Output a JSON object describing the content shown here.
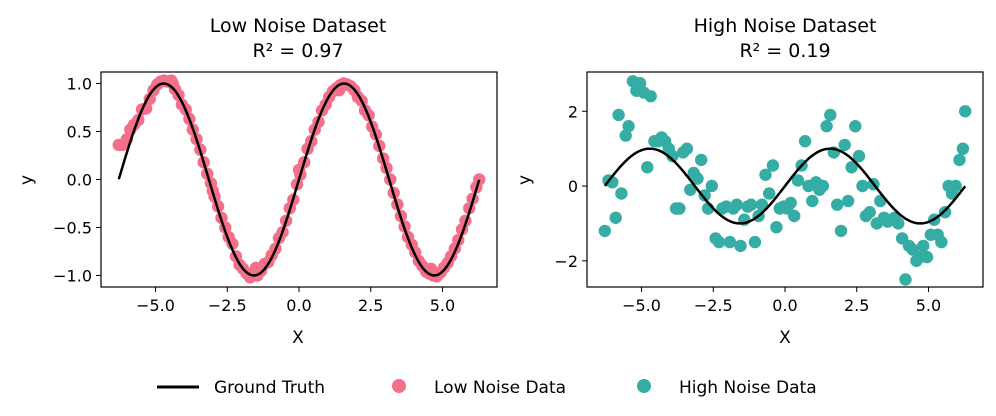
{
  "chart_data": [
    {
      "type": "scatter",
      "title": "Low Noise Dataset",
      "subtitle": "R² = 0.97",
      "xlabel": "X",
      "ylabel": "y",
      "xlim": [
        -6.9,
        6.9
      ],
      "ylim": [
        -1.12,
        1.12
      ],
      "xticks": [
        -5.0,
        -2.5,
        0.0,
        2.5,
        5.0
      ],
      "xtick_labels": [
        "−5.0",
        "−2.5",
        "0.0",
        "2.5",
        "5.0"
      ],
      "yticks": [
        -1.0,
        -0.5,
        0.0,
        0.5,
        1.0
      ],
      "ytick_labels": [
        "−1.0",
        "−0.5",
        "0.0",
        "0.5",
        "1.0"
      ],
      "grid": false,
      "series": [
        {
          "name": "Low Noise Data",
          "kind": "scatter",
          "color": "#f4708a",
          "points": [
            [
              -6.28,
              0.36
            ],
            [
              -6.15,
              0.36
            ],
            [
              -6.0,
              0.42
            ],
            [
              -5.88,
              0.52
            ],
            [
              -5.75,
              0.57
            ],
            [
              -5.6,
              0.62
            ],
            [
              -5.47,
              0.73
            ],
            [
              -5.33,
              0.74
            ],
            [
              -5.2,
              0.84
            ],
            [
              -5.07,
              0.93
            ],
            [
              -4.94,
              0.99
            ],
            [
              -4.82,
              1.02
            ],
            [
              -4.7,
              1.03
            ],
            [
              -4.58,
              1.02
            ],
            [
              -4.45,
              1.03
            ],
            [
              -4.32,
              0.94
            ],
            [
              -4.2,
              0.88
            ],
            [
              -4.08,
              0.78
            ],
            [
              -3.95,
              0.73
            ],
            [
              -3.82,
              0.63
            ],
            [
              -3.7,
              0.52
            ],
            [
              -3.57,
              0.42
            ],
            [
              -3.44,
              0.31
            ],
            [
              -3.32,
              0.18
            ],
            [
              -3.2,
              0.06
            ],
            [
              -3.07,
              -0.04
            ],
            [
              -2.94,
              -0.18
            ],
            [
              -2.82,
              -0.28
            ],
            [
              -2.7,
              -0.4
            ],
            [
              -2.57,
              -0.5
            ],
            [
              -2.45,
              -0.6
            ],
            [
              -2.32,
              -0.67
            ],
            [
              -2.2,
              -0.8
            ],
            [
              -2.07,
              -0.89
            ],
            [
              -1.95,
              -0.93
            ],
            [
              -1.82,
              -0.98
            ],
            [
              -1.7,
              -1.02
            ],
            [
              -1.57,
              -0.98
            ],
            [
              -1.45,
              -1.0
            ],
            [
              -1.32,
              -0.95
            ],
            [
              -1.2,
              -0.88
            ],
            [
              -1.07,
              -0.86
            ],
            [
              -0.95,
              -0.79
            ],
            [
              -0.82,
              -0.72
            ],
            [
              -0.7,
              -0.61
            ],
            [
              -0.57,
              -0.55
            ],
            [
              -0.45,
              -0.43
            ],
            [
              -0.32,
              -0.3
            ],
            [
              -0.2,
              -0.21
            ],
            [
              -0.07,
              -0.05
            ],
            [
              0.05,
              0.05
            ],
            [
              0.18,
              0.18
            ],
            [
              0.3,
              0.32
            ],
            [
              0.43,
              0.4
            ],
            [
              0.55,
              0.52
            ],
            [
              0.68,
              0.6
            ],
            [
              0.8,
              0.72
            ],
            [
              0.93,
              0.78
            ],
            [
              1.05,
              0.86
            ],
            [
              1.18,
              0.92
            ],
            [
              1.3,
              0.95
            ],
            [
              1.43,
              0.98
            ],
            [
              1.55,
              1.0
            ],
            [
              1.68,
              0.99
            ],
            [
              1.8,
              0.97
            ],
            [
              1.93,
              0.93
            ],
            [
              2.05,
              0.86
            ],
            [
              2.18,
              0.82
            ],
            [
              2.3,
              0.72
            ],
            [
              2.43,
              0.67
            ],
            [
              2.55,
              0.55
            ],
            [
              2.68,
              0.47
            ],
            [
              2.8,
              0.35
            ],
            [
              2.93,
              0.22
            ],
            [
              3.05,
              0.12
            ],
            [
              3.18,
              0.0
            ],
            [
              3.3,
              -0.14
            ],
            [
              3.43,
              -0.26
            ],
            [
              3.55,
              -0.38
            ],
            [
              3.68,
              -0.49
            ],
            [
              3.8,
              -0.6
            ],
            [
              3.93,
              -0.68
            ],
            [
              4.05,
              -0.76
            ],
            [
              4.18,
              -0.85
            ],
            [
              4.3,
              -0.9
            ],
            [
              4.43,
              -0.96
            ],
            [
              4.55,
              -0.98
            ],
            [
              4.68,
              -1.0
            ],
            [
              4.8,
              -1.01
            ],
            [
              4.93,
              -0.97
            ],
            [
              5.05,
              -0.92
            ],
            [
              5.18,
              -0.87
            ],
            [
              5.3,
              -0.8
            ],
            [
              5.43,
              -0.72
            ],
            [
              5.55,
              -0.63
            ],
            [
              5.68,
              -0.52
            ],
            [
              5.8,
              -0.43
            ],
            [
              5.93,
              -0.3
            ],
            [
              6.05,
              -0.2
            ],
            [
              6.18,
              -0.08
            ],
            [
              6.28,
              0.0
            ],
            [
              -4.4,
              1.0
            ],
            [
              1.4,
              0.93
            ],
            [
              -1.5,
              -0.92
            ],
            [
              4.6,
              -0.93
            ],
            [
              -3.0,
              -0.12
            ],
            [
              0.0,
              0.1
            ]
          ]
        },
        {
          "name": "Ground Truth",
          "kind": "line",
          "color": "#000000",
          "function": "sin",
          "x_range": [
            -6.28,
            6.28
          ]
        }
      ]
    },
    {
      "type": "scatter",
      "title": "High Noise Dataset",
      "subtitle": "R² = 0.19",
      "xlabel": "X",
      "ylabel": "y",
      "xlim": [
        -6.9,
        6.9
      ],
      "ylim": [
        -2.7,
        3.05
      ],
      "xticks": [
        -5.0,
        -2.5,
        0.0,
        2.5,
        5.0
      ],
      "xtick_labels": [
        "−5.0",
        "−2.5",
        "0.0",
        "2.5",
        "5.0"
      ],
      "yticks": [
        -2,
        0,
        2
      ],
      "ytick_labels": [
        "−2",
        "0",
        "2"
      ],
      "grid": false,
      "series": [
        {
          "name": "High Noise Data",
          "kind": "scatter",
          "color": "#35ada4",
          "points": [
            [
              -6.28,
              -1.2
            ],
            [
              -6.15,
              0.15
            ],
            [
              -6.02,
              0.1
            ],
            [
              -5.9,
              -0.85
            ],
            [
              -5.8,
              1.9
            ],
            [
              -5.7,
              -0.2
            ],
            [
              -5.55,
              1.35
            ],
            [
              -5.45,
              1.6
            ],
            [
              -5.3,
              2.8
            ],
            [
              -5.18,
              2.55
            ],
            [
              -5.05,
              2.75
            ],
            [
              -4.92,
              2.5
            ],
            [
              -4.8,
              0.5
            ],
            [
              -4.68,
              2.4
            ],
            [
              -4.55,
              1.2
            ],
            [
              -4.42,
              1.2
            ],
            [
              -4.3,
              1.3
            ],
            [
              -4.18,
              1.2
            ],
            [
              -4.05,
              1.0
            ],
            [
              -3.92,
              0.8
            ],
            [
              -3.8,
              -0.6
            ],
            [
              -3.68,
              -0.6
            ],
            [
              -3.55,
              0.9
            ],
            [
              -3.42,
              1.0
            ],
            [
              -3.3,
              -0.1
            ],
            [
              -3.18,
              0.35
            ],
            [
              -3.05,
              0.2
            ],
            [
              -2.92,
              0.7
            ],
            [
              -2.8,
              -0.25
            ],
            [
              -2.68,
              -0.6
            ],
            [
              -2.55,
              0.0
            ],
            [
              -2.42,
              -1.4
            ],
            [
              -2.3,
              -1.5
            ],
            [
              -2.18,
              -0.6
            ],
            [
              -2.05,
              -0.55
            ],
            [
              -1.92,
              -1.5
            ],
            [
              -1.8,
              -0.6
            ],
            [
              -1.68,
              -0.5
            ],
            [
              -1.55,
              -1.6
            ],
            [
              -1.42,
              -0.9
            ],
            [
              -1.3,
              -0.55
            ],
            [
              -1.18,
              -0.5
            ],
            [
              -1.05,
              -1.5
            ],
            [
              -0.92,
              -0.8
            ],
            [
              -0.8,
              -0.5
            ],
            [
              -0.68,
              0.3
            ],
            [
              -0.55,
              -0.2
            ],
            [
              -0.42,
              0.55
            ],
            [
              -0.3,
              -1.1
            ],
            [
              -0.18,
              -0.6
            ],
            [
              -0.05,
              -0.55
            ],
            [
              0.08,
              -0.6
            ],
            [
              0.2,
              -0.45
            ],
            [
              0.32,
              -0.8
            ],
            [
              0.45,
              0.15
            ],
            [
              0.58,
              0.55
            ],
            [
              0.7,
              1.2
            ],
            [
              0.82,
              0.0
            ],
            [
              0.95,
              -0.4
            ],
            [
              1.08,
              0.1
            ],
            [
              1.2,
              -0.1
            ],
            [
              1.32,
              0.0
            ],
            [
              1.45,
              1.6
            ],
            [
              1.58,
              1.9
            ],
            [
              1.7,
              0.9
            ],
            [
              1.82,
              -0.5
            ],
            [
              1.95,
              -1.2
            ],
            [
              2.08,
              1.1
            ],
            [
              2.2,
              -0.4
            ],
            [
              2.32,
              0.5
            ],
            [
              2.45,
              1.6
            ],
            [
              2.58,
              0.8
            ],
            [
              2.7,
              0.0
            ],
            [
              2.82,
              -0.8
            ],
            [
              2.95,
              -0.7
            ],
            [
              3.08,
              0.05
            ],
            [
              3.2,
              -1.0
            ],
            [
              3.32,
              -0.4
            ],
            [
              3.45,
              -0.85
            ],
            [
              3.58,
              -0.95
            ],
            [
              3.7,
              -0.9
            ],
            [
              3.82,
              -0.85
            ],
            [
              3.95,
              -1.0
            ],
            [
              4.08,
              -1.4
            ],
            [
              4.2,
              -2.5
            ],
            [
              4.32,
              -1.6
            ],
            [
              4.45,
              -1.7
            ],
            [
              4.58,
              -2.0
            ],
            [
              4.7,
              -1.9
            ],
            [
              4.82,
              -1.6
            ],
            [
              4.95,
              -1.9
            ],
            [
              5.08,
              -1.3
            ],
            [
              5.2,
              -0.9
            ],
            [
              5.32,
              -1.3
            ],
            [
              5.45,
              -1.5
            ],
            [
              5.58,
              -0.7
            ],
            [
              5.7,
              0.0
            ],
            [
              5.82,
              -0.2
            ],
            [
              5.95,
              0.0
            ],
            [
              6.08,
              0.7
            ],
            [
              6.2,
              1.0
            ],
            [
              6.28,
              2.0
            ]
          ]
        },
        {
          "name": "Ground Truth",
          "kind": "line",
          "color": "#000000",
          "function": "sin",
          "x_range": [
            -6.28,
            6.28
          ]
        }
      ]
    }
  ],
  "legend": {
    "placement": "bottom-center",
    "entries": [
      {
        "label": "Ground Truth",
        "marker": "line",
        "color": "#000000"
      },
      {
        "label": "Low Noise Data",
        "marker": "circle",
        "color": "#f4708a"
      },
      {
        "label": "High Noise Data",
        "marker": "circle",
        "color": "#35ada4"
      }
    ]
  }
}
